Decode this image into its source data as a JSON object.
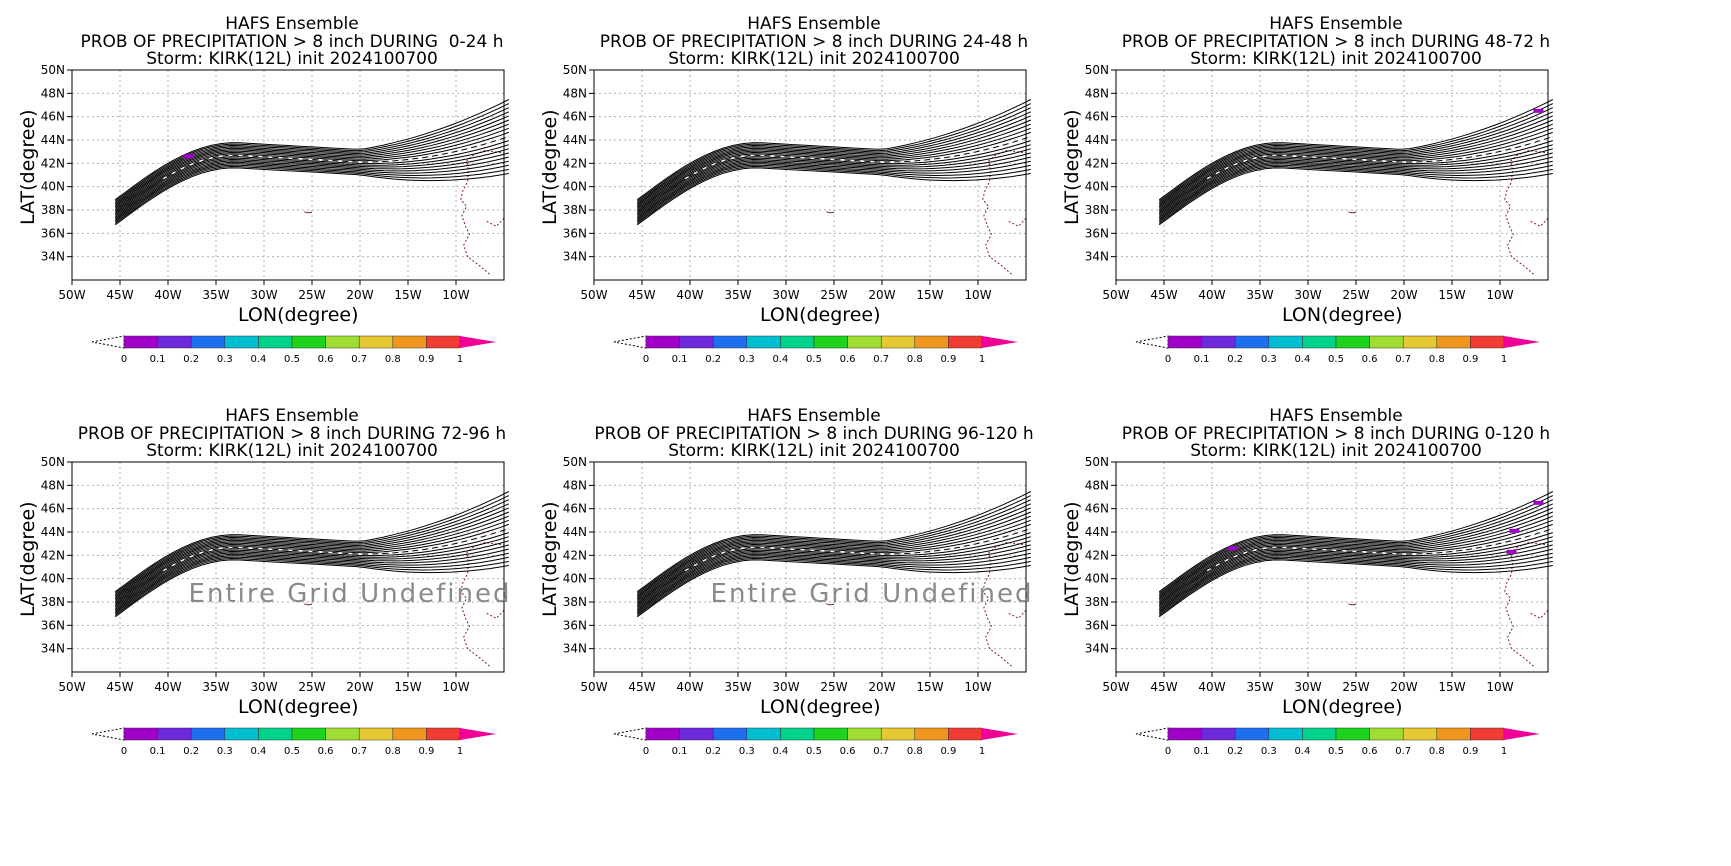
{
  "panels": [
    {
      "title": "HAFS Ensemble",
      "subtitle": "PROB OF PRECIPITATION > 8 inch DURING  0-24 h",
      "storm": "Storm: KIRK(12L) init 2024100700",
      "overlay": ""
    },
    {
      "title": "HAFS Ensemble",
      "subtitle": "PROB OF PRECIPITATION > 8 inch DURING 24-48 h",
      "storm": "Storm: KIRK(12L) init 2024100700",
      "overlay": ""
    },
    {
      "title": "HAFS Ensemble",
      "subtitle": "PROB OF PRECIPITATION > 8 inch DURING 48-72 h",
      "storm": "Storm: KIRK(12L) init 2024100700",
      "overlay": ""
    },
    {
      "title": "HAFS Ensemble",
      "subtitle": "PROB OF PRECIPITATION > 8 inch DURING 72-96 h",
      "storm": "Storm: KIRK(12L) init 2024100700",
      "overlay": "Entire Grid Undefined"
    },
    {
      "title": "HAFS Ensemble",
      "subtitle": "PROB OF PRECIPITATION > 8 inch DURING 96-120 h",
      "storm": "Storm: KIRK(12L) init 2024100700",
      "overlay": "Entire Grid Undefined"
    },
    {
      "title": "HAFS Ensemble",
      "subtitle": "PROB OF PRECIPITATION > 8 inch DURING 0-120 h",
      "storm": "Storm: KIRK(12L) init 2024100700",
      "overlay": ""
    }
  ],
  "axes": {
    "xlabel": "LON(degree)",
    "ylabel": "LAT(degree)",
    "xticks": [
      "50W",
      "45W",
      "40W",
      "35W",
      "30W",
      "25W",
      "20W",
      "15W",
      "10W"
    ],
    "yticks": [
      "34N",
      "36N",
      "38N",
      "40N",
      "42N",
      "44N",
      "46N",
      "48N",
      "50N"
    ]
  },
  "colorbar": {
    "labels": [
      "0",
      "0.1",
      "0.2",
      "0.3",
      "0.4",
      "0.5",
      "0.6",
      "0.7",
      "0.8",
      "0.9",
      "1"
    ],
    "colors": [
      "#a000c8",
      "#6e28dc",
      "#1e6ef0",
      "#00bed2",
      "#00d28c",
      "#1ed21e",
      "#a0dc32",
      "#e6c832",
      "#f0961e",
      "#f03c32",
      "#f00096"
    ]
  },
  "chart_data": [
    {
      "type": "heatmap",
      "title": "HAFS Ensemble",
      "subtitle": "PROB OF PRECIPITATION > 8 inch DURING  0-24 h",
      "xlabel": "LON(degree)",
      "ylabel": "LAT(degree)",
      "xlim": [
        -50,
        -5
      ],
      "ylim": [
        32,
        50
      ],
      "grid": true,
      "cells": [
        {
          "lon": -37.8,
          "lat": 42.6,
          "prob": 0.05
        }
      ]
    },
    {
      "type": "heatmap",
      "title": "HAFS Ensemble",
      "subtitle": "PROB OF PRECIPITATION > 8 inch DURING 24-48 h",
      "xlabel": "LON(degree)",
      "ylabel": "LAT(degree)",
      "xlim": [
        -50,
        -5
      ],
      "ylim": [
        32,
        50
      ],
      "grid": true,
      "cells": []
    },
    {
      "type": "heatmap",
      "title": "HAFS Ensemble",
      "subtitle": "PROB OF PRECIPITATION > 8 inch DURING 48-72 h",
      "xlabel": "LON(degree)",
      "ylabel": "LAT(degree)",
      "xlim": [
        -50,
        -5
      ],
      "ylim": [
        32,
        50
      ],
      "grid": true,
      "cells": [
        {
          "lon": -6.0,
          "lat": 46.5,
          "prob": 0.05
        }
      ]
    },
    {
      "type": "heatmap",
      "title": "HAFS Ensemble",
      "subtitle": "PROB OF PRECIPITATION > 8 inch DURING 72-96 h",
      "xlabel": "LON(degree)",
      "ylabel": "LAT(degree)",
      "xlim": [
        -50,
        -5
      ],
      "ylim": [
        32,
        50
      ],
      "grid": true,
      "cells": []
    },
    {
      "type": "heatmap",
      "title": "HAFS Ensemble",
      "subtitle": "PROB OF PRECIPITATION > 8 inch DURING 96-120 h",
      "xlabel": "LON(degree)",
      "ylabel": "LAT(degree)",
      "xlim": [
        -50,
        -5
      ],
      "ylim": [
        32,
        50
      ],
      "grid": true,
      "cells": []
    },
    {
      "type": "heatmap",
      "title": "HAFS Ensemble",
      "subtitle": "PROB OF PRECIPITATION > 8 inch DURING 0-120 h",
      "xlabel": "LON(degree)",
      "ylabel": "LAT(degree)",
      "xlim": [
        -50,
        -5
      ],
      "ylim": [
        32,
        50
      ],
      "grid": true,
      "cells": [
        {
          "lon": -37.8,
          "lat": 42.6,
          "prob": 0.05
        },
        {
          "lon": -6.0,
          "lat": 46.5,
          "prob": 0.05
        },
        {
          "lon": -8.5,
          "lat": 44.1,
          "prob": 0.05
        },
        {
          "lon": -8.8,
          "lat": 42.3,
          "prob": 0.05
        }
      ]
    }
  ]
}
